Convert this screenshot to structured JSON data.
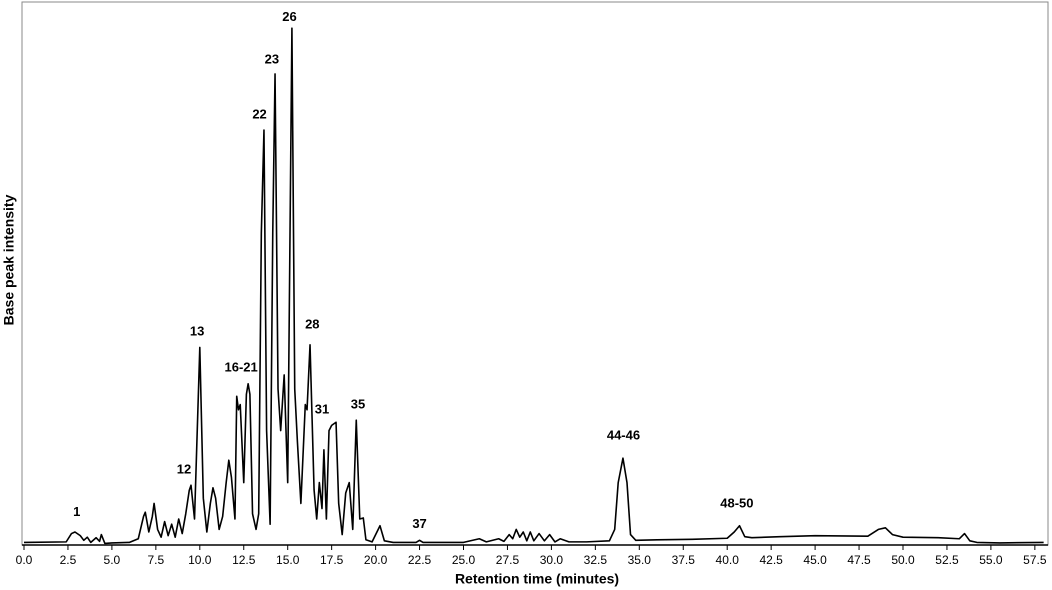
{
  "chart_data": {
    "type": "line",
    "xlabel": "Retention time (minutes)",
    "ylabel": "Base peak intensity",
    "color": "#000000",
    "xlim": [
      0,
      58.2
    ],
    "ylim": [
      0,
      100
    ],
    "xticks": [
      {
        "value": 0,
        "label": "0.0"
      },
      2.5,
      {
        "value": 5,
        "label": "5.0"
      },
      7.5,
      {
        "value": 10,
        "label": "10.0"
      },
      12.5,
      {
        "value": 15,
        "label": "15.0"
      },
      17.5,
      {
        "value": 20,
        "label": "20.0"
      },
      22.5,
      {
        "value": 25,
        "label": "25.0"
      },
      27.5,
      {
        "value": 30,
        "label": "30.0"
      },
      32.5,
      {
        "value": 35,
        "label": "35.0"
      },
      37.5,
      {
        "value": 40,
        "label": "40.0"
      },
      42.5,
      {
        "value": 45,
        "label": "45.0"
      },
      47.5,
      {
        "value": 50,
        "label": "50.0"
      },
      52.5,
      {
        "value": 55,
        "label": "55.0"
      },
      57.5
    ],
    "x": [
      0,
      2.4,
      2.7,
      2.9,
      3.2,
      3.4,
      3.6,
      3.8,
      4.1,
      4.3,
      4.4,
      4.6,
      5.0,
      6.0,
      6.5,
      6.8,
      6.9,
      7.1,
      7.3,
      7.4,
      7.6,
      7.8,
      8.0,
      8.2,
      8.4,
      8.6,
      8.8,
      9.0,
      9.2,
      9.4,
      9.5,
      9.7,
      10.0,
      10.2,
      10.4,
      10.6,
      10.75,
      10.9,
      11.1,
      11.3,
      11.5,
      11.65,
      11.8,
      12.0,
      12.1,
      12.2,
      12.3,
      12.5,
      12.65,
      12.75,
      12.85,
      13.0,
      13.2,
      13.35,
      13.5,
      13.65,
      13.8,
      14.0,
      14.15,
      14.28,
      14.45,
      14.6,
      14.8,
      15.0,
      15.24,
      15.4,
      15.55,
      15.75,
      16.0,
      16.1,
      16.27,
      16.5,
      16.65,
      16.8,
      16.95,
      17.06,
      17.2,
      17.35,
      17.5,
      17.75,
      17.9,
      18.1,
      18.3,
      18.5,
      18.7,
      18.9,
      19.1,
      19.3,
      19.45,
      19.8,
      20.25,
      20.5,
      21.0,
      22.3,
      22.5,
      22.7,
      25.0,
      25.9,
      26.3,
      27.0,
      27.3,
      27.6,
      27.8,
      28.0,
      28.2,
      28.4,
      28.6,
      28.8,
      29.0,
      29.3,
      29.6,
      29.9,
      30.2,
      30.5,
      31.0,
      32.0,
      33.3,
      33.6,
      33.8,
      34.07,
      34.3,
      34.5,
      34.8,
      36.0,
      38.0,
      40.0,
      40.4,
      40.7,
      41.0,
      41.4,
      43.0,
      45.0,
      48.0,
      48.6,
      49.0,
      49.4,
      50.0,
      52.0,
      53.2,
      53.5,
      53.8,
      54.2,
      55.5,
      58.0
    ],
    "values": [
      0.5,
      0.6,
      2.2,
      2.5,
      1.8,
      0.9,
      1.5,
      0.5,
      1.4,
      0.7,
      2.0,
      0.3,
      0.4,
      0.5,
      1.2,
      5.5,
      6.3,
      2.5,
      5.5,
      8.0,
      3.0,
      1.5,
      4.5,
      1.8,
      4.0,
      1.5,
      5.0,
      2.2,
      6.0,
      10.5,
      11.5,
      5.0,
      38.0,
      9.0,
      2.5,
      8.0,
      11.0,
      9.0,
      3.0,
      5.5,
      12.0,
      16.3,
      13.0,
      5.0,
      28.6,
      26.0,
      27.0,
      12.0,
      29.0,
      31.0,
      29.0,
      6.0,
      3.0,
      6.0,
      60.0,
      79.8,
      22.0,
      4.0,
      60.0,
      90.6,
      30.0,
      22.0,
      32.7,
      12.0,
      99.4,
      30.0,
      20.0,
      8.0,
      27.0,
      26.0,
      38.5,
      10.6,
      5.0,
      12.0,
      7.0,
      18.3,
      5.0,
      22.0,
      23.0,
      23.6,
      8.0,
      2.0,
      10.0,
      12.0,
      3.0,
      24.0,
      5.0,
      5.2,
      1.0,
      0.6,
      3.7,
      0.8,
      0.5,
      0.5,
      0.9,
      0.5,
      0.5,
      1.2,
      0.6,
      1.2,
      0.7,
      2.0,
      1.2,
      3.0,
      1.5,
      2.5,
      0.8,
      2.5,
      0.8,
      2.2,
      0.8,
      2.0,
      0.6,
      1.2,
      0.6,
      0.6,
      0.8,
      3.0,
      12.0,
      16.7,
      12.0,
      2.0,
      0.9,
      1.0,
      1.1,
      1.3,
      2.5,
      3.7,
      1.6,
      1.4,
      1.6,
      1.8,
      1.7,
      3.0,
      3.3,
      2.0,
      1.5,
      1.4,
      1.2,
      2.2,
      0.8,
      0.5,
      0.4,
      0.5
    ],
    "annotations": [
      {
        "label": "1",
        "x": 3.0,
        "y": 3.5
      },
      {
        "label": "12",
        "x": 9.1,
        "y": 11.7
      },
      {
        "label": "13",
        "x": 9.85,
        "y": 38.3
      },
      {
        "label": "16-21",
        "x": 12.35,
        "y": 31.3
      },
      {
        "label": "22",
        "x": 13.4,
        "y": 80
      },
      {
        "label": "23",
        "x": 14.1,
        "y": 90.6
      },
      {
        "label": "26",
        "x": 15.1,
        "y": 98.7
      },
      {
        "label": "28",
        "x": 16.4,
        "y": 39.6
      },
      {
        "label": "31",
        "x": 16.95,
        "y": 23.3
      },
      {
        "label": "35",
        "x": 19.0,
        "y": 24.2
      },
      {
        "label": "37",
        "x": 22.5,
        "y": 1.2
      },
      {
        "label": "44-46",
        "x": 34.1,
        "y": 18.3
      },
      {
        "label": "48-50",
        "x": 40.55,
        "y": 5.2
      }
    ]
  }
}
